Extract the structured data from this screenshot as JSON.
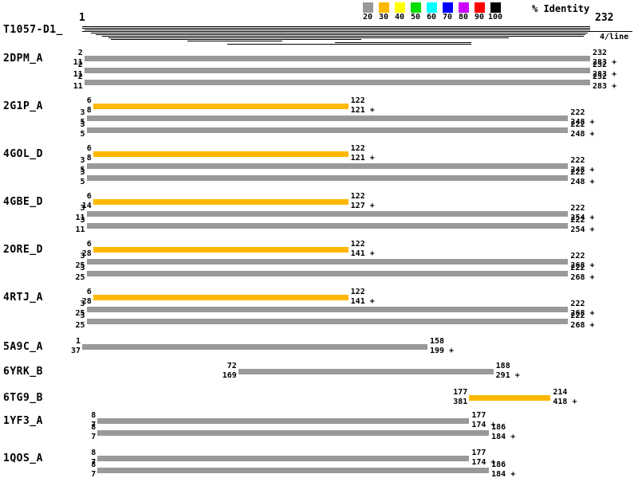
{
  "title": "T1057-D1_",
  "ruler": {
    "start_label": "1",
    "end_label": "232",
    "per_line_label": "4/line"
  },
  "legend": {
    "title": "% Identity",
    "bins": [
      {
        "label": "20",
        "color": "#999999"
      },
      {
        "label": "30",
        "color": "#ffb800"
      },
      {
        "label": "40",
        "color": "#ffff00"
      },
      {
        "label": "50",
        "color": "#00dd00"
      },
      {
        "label": "60",
        "color": "#00ffff"
      },
      {
        "label": "70",
        "color": "#0000ff"
      },
      {
        "label": "80",
        "color": "#cc00ff"
      },
      {
        "label": "90",
        "color": "#ff0000"
      },
      {
        "label": "100",
        "color": "#000000"
      }
    ]
  },
  "chart_data": {
    "type": "alignment-coverage-map",
    "title": "T1057-D1_",
    "query": {
      "name": "T1057-D1_",
      "range": [
        1,
        232
      ],
      "coverage_lines": [
        {
          "row": 0,
          "start": 1,
          "end": 232
        },
        {
          "row": 1,
          "start": 1,
          "end": 232
        },
        {
          "row": 2,
          "start": 2,
          "end": 232
        },
        {
          "row": 4,
          "start": 5,
          "end": 231
        },
        {
          "row": 5,
          "start": 7,
          "end": 230
        },
        {
          "row": 6,
          "start": 10,
          "end": 229
        },
        {
          "row": 7,
          "start": 13,
          "end": 195
        },
        {
          "row": 8,
          "start": 14,
          "end": 128
        },
        {
          "row": 9,
          "start": 49,
          "end": 92
        },
        {
          "row": 10,
          "start": 116,
          "end": 178
        },
        {
          "row": 11,
          "start": 67,
          "end": 178
        }
      ]
    },
    "hits": [
      {
        "id": "2DPM_A",
        "segments": [
          {
            "query_start": 2,
            "query_end": 232,
            "hit_start": 11,
            "hit_end": 283,
            "strand": "+",
            "identity_bin": "20"
          },
          {
            "query_start": 2,
            "query_end": 232,
            "hit_start": 11,
            "hit_end": 283,
            "strand": "+",
            "identity_bin": "20"
          },
          {
            "query_start": 2,
            "query_end": 232,
            "hit_start": 11,
            "hit_end": 283,
            "strand": "+",
            "identity_bin": "20"
          }
        ]
      },
      {
        "id": "2G1P_A",
        "segments": [
          {
            "query_start": 6,
            "query_end": 122,
            "hit_start": 8,
            "hit_end": 121,
            "strand": "+",
            "identity_bin": "30"
          },
          {
            "query_start": 3,
            "query_end": 222,
            "hit_start": 5,
            "hit_end": 248,
            "strand": "+",
            "identity_bin": "20"
          },
          {
            "query_start": 3,
            "query_end": 222,
            "hit_start": 5,
            "hit_end": 248,
            "strand": "+",
            "identity_bin": "20"
          }
        ]
      },
      {
        "id": "4GOL_D",
        "segments": [
          {
            "query_start": 6,
            "query_end": 122,
            "hit_start": 8,
            "hit_end": 121,
            "strand": "+",
            "identity_bin": "30"
          },
          {
            "query_start": 3,
            "query_end": 222,
            "hit_start": 5,
            "hit_end": 248,
            "strand": "+",
            "identity_bin": "20"
          },
          {
            "query_start": 3,
            "query_end": 222,
            "hit_start": 5,
            "hit_end": 248,
            "strand": "+",
            "identity_bin": "20"
          }
        ]
      },
      {
        "id": "4GBE_D",
        "segments": [
          {
            "query_start": 6,
            "query_end": 122,
            "hit_start": 14,
            "hit_end": 127,
            "strand": "+",
            "identity_bin": "30"
          },
          {
            "query_start": 3,
            "query_end": 222,
            "hit_start": 11,
            "hit_end": 254,
            "strand": "+",
            "identity_bin": "20"
          },
          {
            "query_start": 3,
            "query_end": 222,
            "hit_start": 11,
            "hit_end": 254,
            "strand": "+",
            "identity_bin": "20"
          }
        ]
      },
      {
        "id": "2ORE_D",
        "segments": [
          {
            "query_start": 6,
            "query_end": 122,
            "hit_start": 28,
            "hit_end": 141,
            "strand": "+",
            "identity_bin": "30"
          },
          {
            "query_start": 3,
            "query_end": 222,
            "hit_start": 25,
            "hit_end": 268,
            "strand": "+",
            "identity_bin": "20"
          },
          {
            "query_start": 3,
            "query_end": 222,
            "hit_start": 25,
            "hit_end": 268,
            "strand": "+",
            "identity_bin": "20"
          }
        ]
      },
      {
        "id": "4RTJ_A",
        "segments": [
          {
            "query_start": 6,
            "query_end": 122,
            "hit_start": 28,
            "hit_end": 141,
            "strand": "+",
            "identity_bin": "30"
          },
          {
            "query_start": 3,
            "query_end": 222,
            "hit_start": 25,
            "hit_end": 268,
            "strand": "+",
            "identity_bin": "20"
          },
          {
            "query_start": 3,
            "query_end": 222,
            "hit_start": 25,
            "hit_end": 268,
            "strand": "+",
            "identity_bin": "20"
          }
        ]
      },
      {
        "id": "5A9C_A",
        "segments": [
          {
            "query_start": 1,
            "query_end": 158,
            "hit_start": 37,
            "hit_end": 199,
            "strand": "+",
            "identity_bin": "20"
          }
        ]
      },
      {
        "id": "6YRK_B",
        "segments": [
          {
            "query_start": 72,
            "query_end": 188,
            "hit_start": 169,
            "hit_end": 291,
            "strand": "+",
            "identity_bin": "20"
          }
        ]
      },
      {
        "id": "6TG9_B",
        "segments": [
          {
            "query_start": 177,
            "query_end": 214,
            "hit_start": 381,
            "hit_end": 418,
            "strand": "+",
            "identity_bin": "30"
          }
        ]
      },
      {
        "id": "1YF3_A",
        "segments": [
          {
            "query_start": 8,
            "query_end": 177,
            "hit_start": 7,
            "hit_end": 174,
            "strand": "+",
            "identity_bin": "20"
          },
          {
            "query_start": 8,
            "query_end": 186,
            "hit_start": 7,
            "hit_end": 184,
            "strand": "+",
            "identity_bin": "20"
          }
        ]
      },
      {
        "id": "1QOS_A",
        "segments": [
          {
            "query_start": 8,
            "query_end": 177,
            "hit_start": 7,
            "hit_end": 174,
            "strand": "+",
            "identity_bin": "20"
          },
          {
            "query_start": 8,
            "query_end": 186,
            "hit_start": 7,
            "hit_end": 184,
            "strand": "+",
            "identity_bin": "20"
          }
        ]
      }
    ]
  }
}
